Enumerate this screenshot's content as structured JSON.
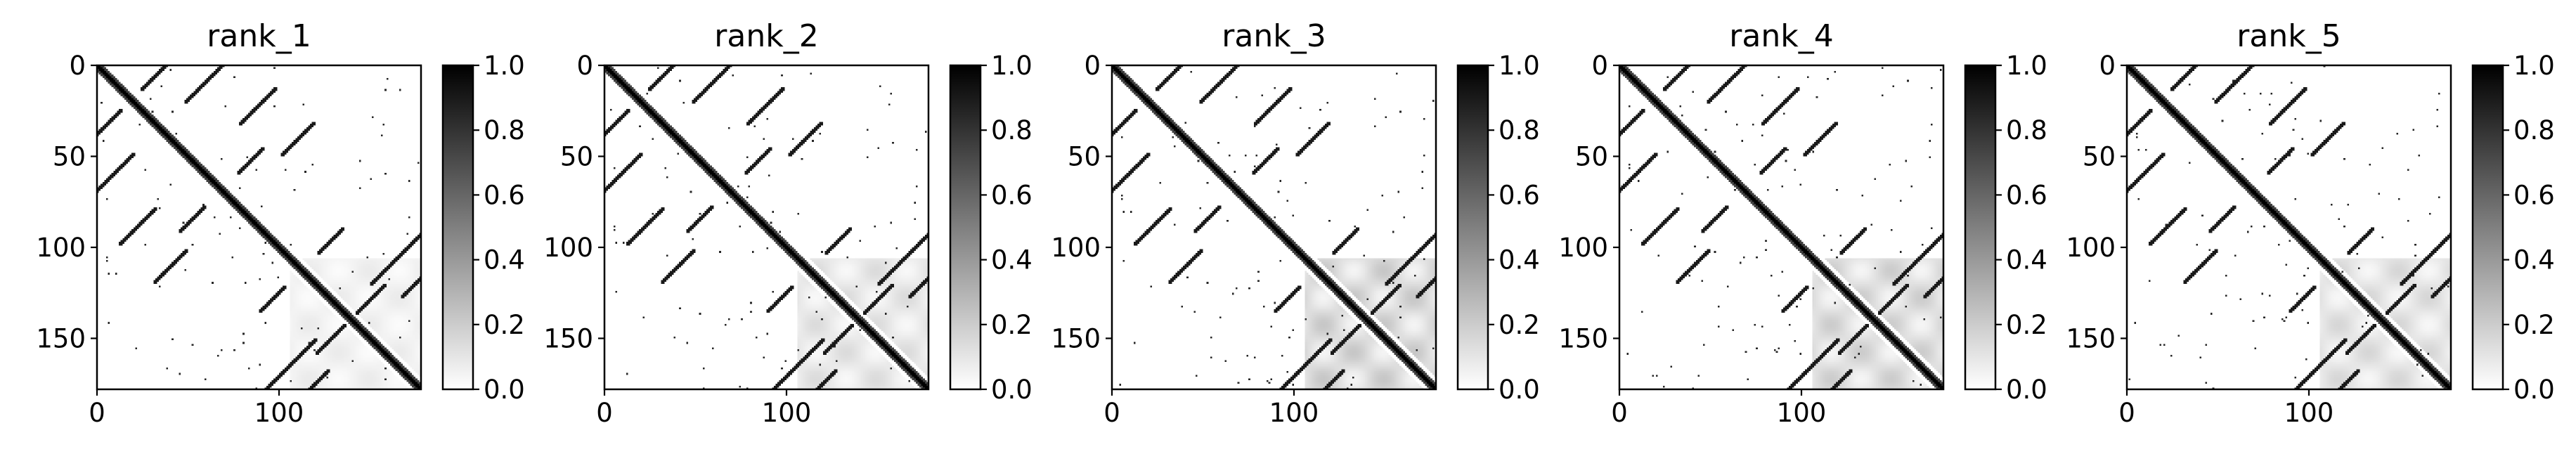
{
  "chart_data": [
    {
      "type": "heatmap",
      "title": "rank_1",
      "matrix_size": 178,
      "x_ticks": [
        0,
        100
      ],
      "y_ticks": [
        0,
        50,
        100,
        150
      ],
      "xlim": [
        0,
        178
      ],
      "ylim": [
        178,
        0
      ],
      "colorbar": {
        "min": 0.0,
        "max": 1.0,
        "ticks": [
          "0.0",
          "0.2",
          "0.4",
          "0.6",
          "0.8",
          "1.0"
        ],
        "colormap": "Greys"
      },
      "colors": {
        "low": "#ffffff",
        "high": "#000000"
      },
      "haze": 0.08,
      "grid": false
    },
    {
      "type": "heatmap",
      "title": "rank_2",
      "matrix_size": 178,
      "x_ticks": [
        0,
        100
      ],
      "y_ticks": [
        0,
        50,
        100,
        150
      ],
      "xlim": [
        0,
        178
      ],
      "ylim": [
        178,
        0
      ],
      "colorbar": {
        "min": 0.0,
        "max": 1.0,
        "ticks": [
          "0.0",
          "0.2",
          "0.4",
          "0.6",
          "0.8",
          "1.0"
        ],
        "colormap": "Greys"
      },
      "colors": {
        "low": "#ffffff",
        "high": "#000000"
      },
      "haze": 0.14,
      "grid": false
    },
    {
      "type": "heatmap",
      "title": "rank_3",
      "matrix_size": 178,
      "x_ticks": [
        0,
        100
      ],
      "y_ticks": [
        0,
        50,
        100,
        150
      ],
      "xlim": [
        0,
        178
      ],
      "ylim": [
        178,
        0
      ],
      "colorbar": {
        "min": 0.0,
        "max": 1.0,
        "ticks": [
          "0.0",
          "0.2",
          "0.4",
          "0.6",
          "0.8",
          "1.0"
        ],
        "colormap": "Greys"
      },
      "colors": {
        "low": "#ffffff",
        "high": "#000000"
      },
      "haze": 0.22,
      "grid": false
    },
    {
      "type": "heatmap",
      "title": "rank_4",
      "matrix_size": 178,
      "x_ticks": [
        0,
        100
      ],
      "y_ticks": [
        0,
        50,
        100,
        150
      ],
      "xlim": [
        0,
        178
      ],
      "ylim": [
        178,
        0
      ],
      "colorbar": {
        "min": 0.0,
        "max": 1.0,
        "ticks": [
          "0.0",
          "0.2",
          "0.4",
          "0.6",
          "0.8",
          "1.0"
        ],
        "colormap": "Greys"
      },
      "colors": {
        "low": "#ffffff",
        "high": "#000000"
      },
      "haze": 0.2,
      "grid": false
    },
    {
      "type": "heatmap",
      "title": "rank_5",
      "matrix_size": 178,
      "x_ticks": [
        0,
        100
      ],
      "y_ticks": [
        0,
        50,
        100,
        150
      ],
      "xlim": [
        0,
        178
      ],
      "ylim": [
        178,
        0
      ],
      "colorbar": {
        "min": 0.0,
        "max": 1.0,
        "ticks": [
          "0.0",
          "0.2",
          "0.4",
          "0.6",
          "0.8",
          "1.0"
        ],
        "colormap": "Greys"
      },
      "colors": {
        "low": "#ffffff",
        "high": "#000000"
      },
      "haze": 0.16,
      "grid": false
    }
  ]
}
